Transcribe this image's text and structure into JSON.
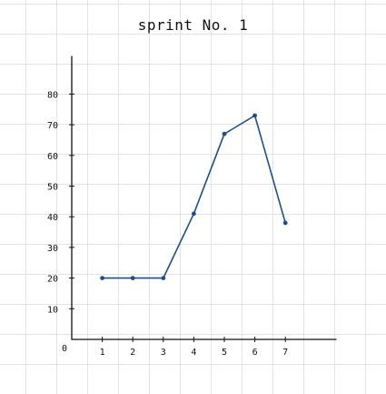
{
  "chart_data": {
    "type": "line",
    "title": "sprint No. 1",
    "xlabel": "",
    "ylabel": "",
    "x": [
      1,
      2,
      3,
      4,
      5,
      6,
      7
    ],
    "series": [
      {
        "values": [
          20,
          20,
          20,
          41,
          67,
          73,
          38
        ]
      }
    ],
    "origin_label": "0",
    "xticks": [
      "1",
      "2",
      "3",
      "4",
      "5",
      "6",
      "7"
    ],
    "yticks": [
      "10",
      "20",
      "30",
      "40",
      "50",
      "60",
      "70",
      "80"
    ],
    "ylim": [
      0,
      93
    ],
    "xlim": [
      0,
      8.5
    ],
    "grid": true,
    "line_color": "#1f4f8a"
  }
}
